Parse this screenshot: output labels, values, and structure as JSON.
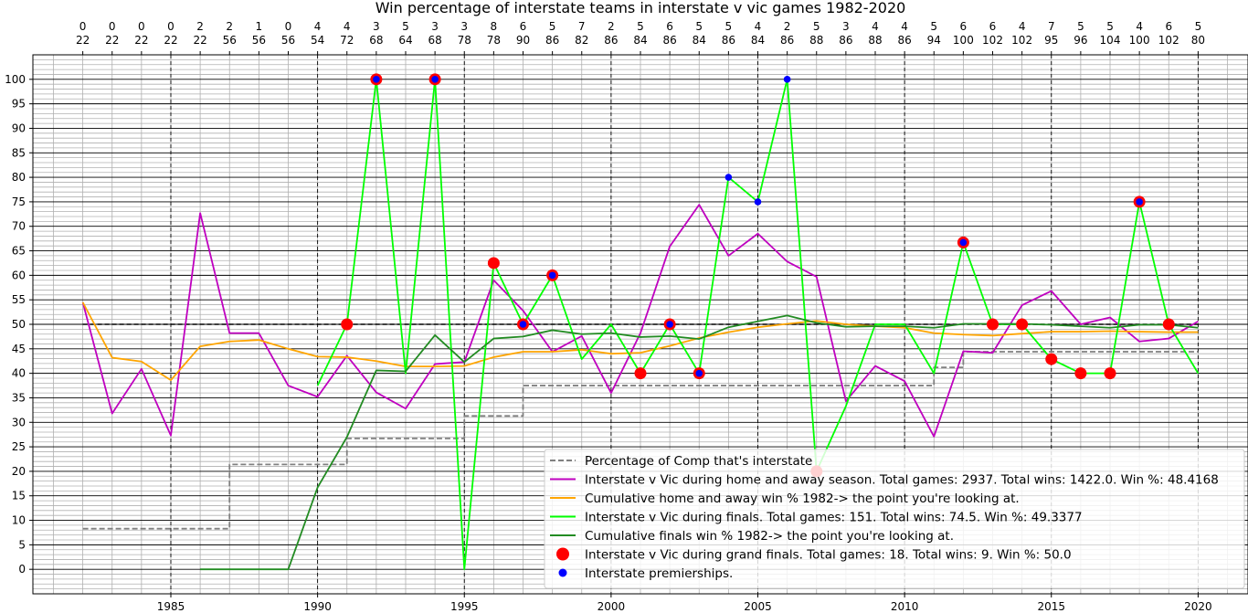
{
  "chart_data": {
    "type": "line",
    "title": "Win percentage of interstate teams in interstate v vic games 1982-2020",
    "xlabel": "",
    "ylabel": "",
    "xlim": [
      1980.3,
      2021.7
    ],
    "ylim": [
      -5,
      105
    ],
    "xticks": [
      1985,
      1990,
      1995,
      2000,
      2005,
      2010,
      2015,
      2020
    ],
    "yticks": [
      0,
      5,
      10,
      15,
      20,
      25,
      30,
      35,
      40,
      45,
      50,
      55,
      60,
      65,
      70,
      75,
      80,
      85,
      90,
      95,
      100
    ],
    "grid": true,
    "legend_position": "lower-right",
    "years": [
      1982,
      1983,
      1984,
      1985,
      1986,
      1987,
      1988,
      1989,
      1990,
      1991,
      1992,
      1993,
      1994,
      1995,
      1996,
      1997,
      1998,
      1999,
      2000,
      2001,
      2002,
      2003,
      2004,
      2005,
      2006,
      2007,
      2008,
      2009,
      2010,
      2011,
      2012,
      2013,
      2014,
      2015,
      2016,
      2017,
      2018,
      2019,
      2020
    ],
    "top_labels_row1": [
      "0",
      "0",
      "0",
      "0",
      "2",
      "2",
      "1",
      "0",
      "4",
      "4",
      "3",
      "5",
      "3",
      "3",
      "8",
      "6",
      "5",
      "7",
      "2",
      "5",
      "6",
      "5",
      "5",
      "4",
      "2",
      "5",
      "3",
      "4",
      "4",
      "5",
      "6",
      "6",
      "4",
      "7",
      "5",
      "5",
      "4",
      "6",
      "5"
    ],
    "top_labels_row2": [
      "22",
      "22",
      "22",
      "22",
      "22",
      "56",
      "56",
      "56",
      "54",
      "72",
      "68",
      "64",
      "68",
      "78",
      "78",
      "90",
      "86",
      "82",
      "86",
      "84",
      "86",
      "84",
      "86",
      "84",
      "86",
      "88",
      "86",
      "88",
      "86",
      "94",
      "100",
      "102",
      "102",
      "95",
      "96",
      "104",
      "100",
      "102",
      "80"
    ],
    "reference_line": 50,
    "series": [
      {
        "name": "Percentage of Comp that's interstate",
        "color": "#808080",
        "style": "dashed-step",
        "x": [
          1982,
          1983,
          1984,
          1985,
          1986,
          1987,
          1988,
          1989,
          1990,
          1991,
          1992,
          1993,
          1994,
          1995,
          1996,
          1997,
          1998,
          1999,
          2000,
          2001,
          2002,
          2003,
          2004,
          2005,
          2006,
          2007,
          2008,
          2009,
          2010,
          2011,
          2012,
          2013,
          2014,
          2015,
          2016,
          2017,
          2018,
          2019,
          2020
        ],
        "values": [
          8.3,
          8.3,
          8.3,
          8.3,
          8.3,
          21.4,
          21.4,
          21.4,
          21.4,
          26.7,
          26.7,
          26.7,
          26.7,
          31.3,
          31.3,
          37.5,
          37.5,
          37.5,
          37.5,
          37.5,
          37.5,
          37.5,
          37.5,
          37.5,
          37.5,
          37.5,
          37.5,
          37.5,
          37.5,
          41.2,
          44.4,
          44.4,
          44.4,
          44.4,
          44.4,
          44.4,
          44.4,
          44.4,
          44.4
        ]
      },
      {
        "name": "Interstate v Vic during home and away season. Total games: 2937. Total wins: 1422.0. Win %: 48.4168",
        "color": "#bf00bf",
        "style": "line",
        "x": [
          1982,
          1983,
          1984,
          1985,
          1986,
          1987,
          1988,
          1989,
          1990,
          1991,
          1992,
          1993,
          1994,
          1995,
          1996,
          1997,
          1998,
          1999,
          2000,
          2001,
          2002,
          2003,
          2004,
          2005,
          2006,
          2007,
          2008,
          2009,
          2010,
          2011,
          2012,
          2013,
          2014,
          2015,
          2016,
          2017,
          2018,
          2019,
          2020
        ],
        "values": [
          54.5,
          31.8,
          40.9,
          27.3,
          72.7,
          48.2,
          48.2,
          37.5,
          35.2,
          43.6,
          36.1,
          32.8,
          41.9,
          42.3,
          59.0,
          52.8,
          44.4,
          47.6,
          36.0,
          48.2,
          65.9,
          74.4,
          64.0,
          68.5,
          62.8,
          59.7,
          34.3,
          41.5,
          38.4,
          27.1,
          44.5,
          44.2,
          53.9,
          56.8,
          50.0,
          51.4,
          46.5,
          47.1,
          50.6
        ]
      },
      {
        "name": "Cumulative home and away win % 1982-> the point you're looking at.",
        "color": "#ffa500",
        "style": "line",
        "x": [
          1982,
          1983,
          1984,
          1985,
          1986,
          1987,
          1988,
          1989,
          1990,
          1991,
          1992,
          1993,
          1994,
          1995,
          1996,
          1997,
          1998,
          1999,
          2000,
          2001,
          2002,
          2003,
          2004,
          2005,
          2006,
          2007,
          2008,
          2009,
          2010,
          2011,
          2012,
          2013,
          2014,
          2015,
          2016,
          2017,
          2018,
          2019,
          2020
        ],
        "values": [
          54.5,
          43.2,
          42.4,
          38.6,
          45.5,
          46.5,
          46.8,
          45.0,
          43.4,
          43.3,
          42.5,
          41.4,
          41.4,
          41.5,
          43.3,
          44.4,
          44.4,
          44.8,
          44.0,
          44.2,
          45.6,
          47.2,
          48.4,
          49.4,
          50.1,
          50.7,
          50.0,
          49.6,
          49.3,
          48.2,
          47.9,
          47.7,
          48.1,
          48.5,
          48.5,
          48.6,
          48.5,
          48.4,
          48.4
        ]
      },
      {
        "name": "Interstate v Vic during finals. Total games: 151. Total wins: 74.5. Win %: 49.3377",
        "color": "#00ff00",
        "style": "line",
        "x": [
          1990,
          1991,
          1992,
          1993,
          1994,
          1995,
          1996,
          1997,
          1998,
          1999,
          2000,
          2001,
          2002,
          2003,
          2004,
          2005,
          2006,
          2007,
          2008,
          2009,
          2010,
          2011,
          2012,
          2013,
          2014,
          2015,
          2016,
          2017,
          2018,
          2019,
          2020
        ],
        "values": [
          37.5,
          50.0,
          100.0,
          40.0,
          100.0,
          0.0,
          62.5,
          50.0,
          60.0,
          42.9,
          50.0,
          40.0,
          50.0,
          40.0,
          80.0,
          75.0,
          100.0,
          20.0,
          33.3,
          50.0,
          50.0,
          40.0,
          66.7,
          50.0,
          50.0,
          42.9,
          40.0,
          40.0,
          75.0,
          50.0,
          40.0
        ]
      },
      {
        "name": "Cumulative finals win % 1982-> the point you're looking at.",
        "color": "#228b22",
        "style": "line",
        "x": [
          1986,
          1987,
          1988,
          1989,
          1990,
          1991,
          1992,
          1993,
          1994,
          1995,
          1996,
          1997,
          1998,
          1999,
          2000,
          2001,
          2002,
          2003,
          2004,
          2005,
          2006,
          2007,
          2008,
          2009,
          2010,
          2011,
          2012,
          2013,
          2014,
          2015,
          2016,
          2017,
          2018,
          2019,
          2020
        ],
        "values": [
          0.0,
          0.0,
          0.0,
          0.0,
          16.7,
          27.0,
          40.6,
          40.4,
          47.8,
          42.3,
          47.1,
          47.5,
          48.8,
          48.0,
          48.2,
          47.4,
          47.6,
          47.0,
          49.4,
          50.6,
          51.8,
          50.3,
          49.5,
          49.6,
          49.6,
          49.3,
          50.1,
          50.1,
          50.1,
          49.9,
          49.6,
          49.3,
          49.9,
          49.9,
          49.3
        ]
      }
    ],
    "markers": [
      {
        "name": "Interstate v Vic during grand finals. Total games: 18. Total wins: 9. Win %: 50.0",
        "color": "#ff0000",
        "x": [
          1991,
          1992,
          1994,
          1996,
          1997,
          1998,
          2001,
          2002,
          2003,
          2007,
          2012,
          2013,
          2014,
          2015,
          2016,
          2017,
          2018,
          2019
        ],
        "values": [
          50,
          100,
          100,
          62.5,
          50,
          60,
          40,
          50,
          40,
          20,
          66.7,
          50,
          50,
          42.9,
          40,
          40,
          75,
          50
        ]
      },
      {
        "name": "Interstate premierships.",
        "color": "#0000ff",
        "x": [
          1992,
          1994,
          1997,
          1998,
          2002,
          2003,
          2004,
          2005,
          2006,
          2012,
          2018
        ],
        "values": [
          100,
          100,
          50,
          60,
          50,
          40,
          80,
          75,
          100,
          66.7,
          75
        ]
      }
    ]
  }
}
